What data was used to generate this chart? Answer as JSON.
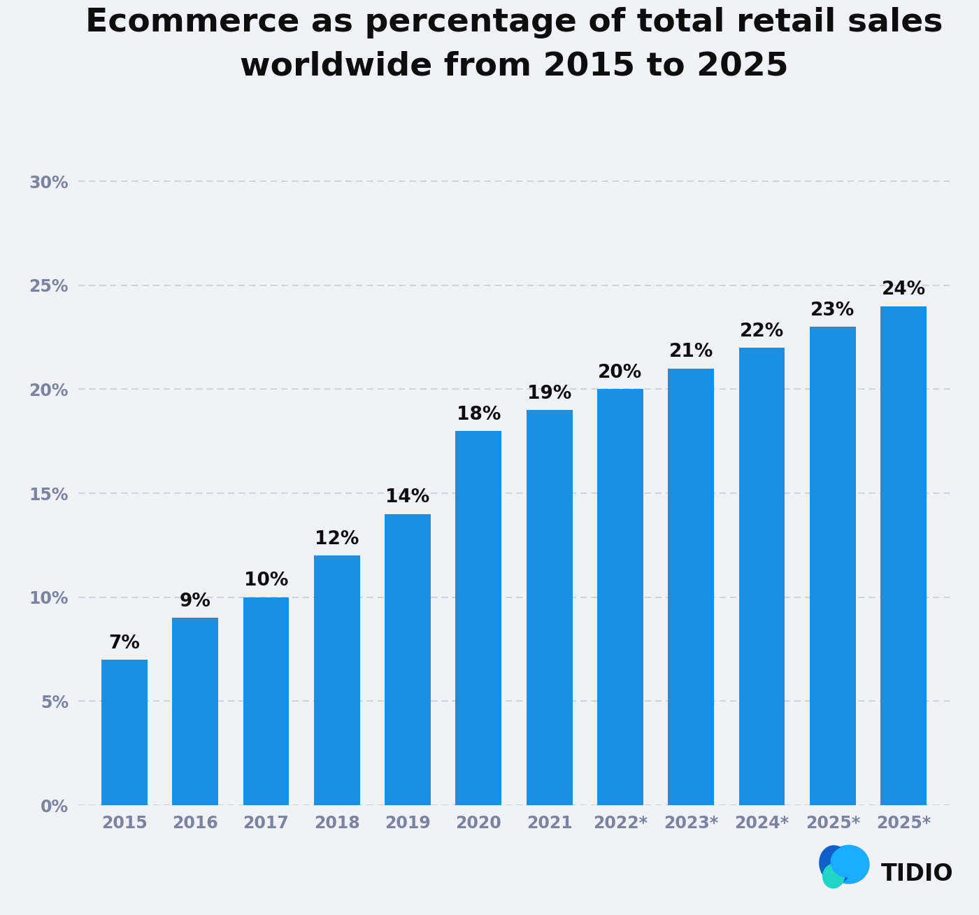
{
  "title_line1": "Ecommerce as percentage of total retail sales",
  "title_line2": "worldwide from 2015 to 2025",
  "categories": [
    "2015",
    "2016",
    "2017",
    "2018",
    "2019",
    "2020",
    "2021",
    "2022*",
    "2023*",
    "2024*",
    "2025*",
    "2025*"
  ],
  "values": [
    7,
    9,
    10,
    12,
    14,
    18,
    19,
    20,
    21,
    22,
    23,
    24
  ],
  "bar_color": "#1a8fe3",
  "background_color": "#f0f2f7",
  "yticks": [
    0,
    5,
    10,
    15,
    20,
    25,
    30
  ],
  "ylim": [
    0,
    33
  ],
  "grid_color": "#c5cad8",
  "title_fontsize": 34,
  "bar_label_fontsize": 19,
  "axis_label_fontsize": 17,
  "tick_label_color": "#7a84a0",
  "title_color": "#0d0d0d",
  "tidio_text": "TIDIO",
  "tidio_text_color": "#0d0d0d",
  "tidio_fontsize": 24,
  "logo_blue_light": "#1aacff",
  "logo_blue_dark": "#1060c8",
  "logo_teal": "#20d4c8"
}
